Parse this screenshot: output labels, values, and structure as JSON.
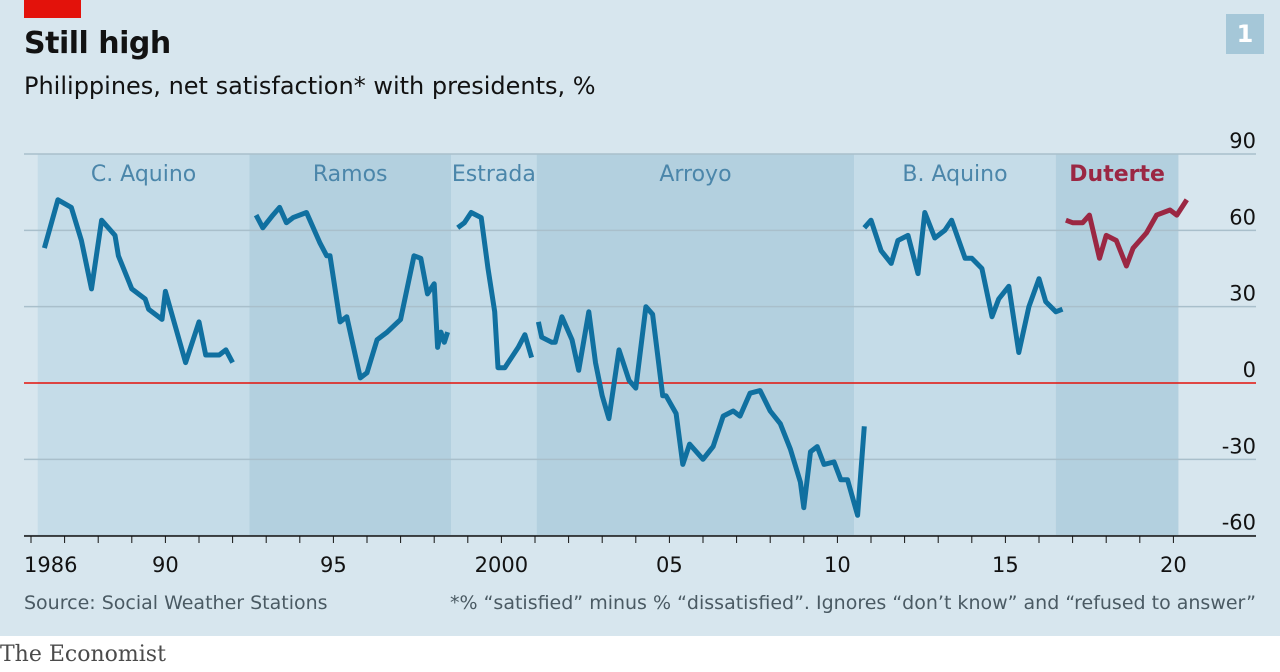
{
  "header": {
    "title": "Still high",
    "subtitle": "Philippines, net satisfaction* with presidents, %",
    "chart_number": "1"
  },
  "footer": {
    "source": "Source: Social Weather Stations",
    "footnote": "*% “satisfied” minus % “dissatisfied”. Ignores “don’t know” and “refused to answer”",
    "brand": "The Economist"
  },
  "colors": {
    "background": "#d7e6ee",
    "band": "#b3d0df",
    "line": "#1070a0",
    "highlight": "#9b2743",
    "zero_line": "#e3120b",
    "grid": "#a9bfcb",
    "band_label": "#4b86aa"
  },
  "chart_data": {
    "type": "line",
    "title": "Still high",
    "subtitle": "Philippines, net satisfaction* with presidents, %",
    "xlabel": "",
    "ylabel": "",
    "ylim": [
      -60,
      90
    ],
    "xlim": [
      1986,
      2021
    ],
    "y_ticks": [
      90,
      60,
      30,
      0,
      -30,
      -60
    ],
    "y_tick_labels": [
      "90",
      "60",
      "30",
      "0",
      "-30",
      "-60"
    ],
    "x_ticks": [
      1986,
      1990,
      1995,
      2000,
      2005,
      2010,
      2015,
      2020
    ],
    "x_tick_labels": [
      "1986",
      "90",
      "95",
      "2000",
      "05",
      "10",
      "15",
      "20"
    ],
    "grid": true,
    "zero_line": true,
    "presidencies": [
      {
        "name": "C. Aquino",
        "start": 1986.2,
        "end": 1992.5,
        "shaded": true,
        "highlight": false
      },
      {
        "name": "Ramos",
        "start": 1992.5,
        "end": 1998.5,
        "shaded": false,
        "highlight": false
      },
      {
        "name": "Estrada",
        "start": 1998.5,
        "end": 2001.05,
        "shaded": true,
        "highlight": false
      },
      {
        "name": "Arroyo",
        "start": 2001.05,
        "end": 2010.5,
        "shaded": false,
        "highlight": false
      },
      {
        "name": "B. Aquino",
        "start": 2010.5,
        "end": 2016.5,
        "shaded": true,
        "highlight": false
      },
      {
        "name": "Duterte",
        "start": 2016.5,
        "end": 2020.15,
        "shaded": false,
        "highlight": true
      }
    ],
    "series": [
      {
        "name": "C. Aquino",
        "highlight": false,
        "points": [
          [
            1986.4,
            53
          ],
          [
            1986.8,
            72
          ],
          [
            1987.2,
            69
          ],
          [
            1987.5,
            56
          ],
          [
            1987.8,
            37
          ],
          [
            1988.1,
            64
          ],
          [
            1988.5,
            58
          ],
          [
            1988.6,
            50
          ],
          [
            1989.0,
            37
          ],
          [
            1989.4,
            33
          ],
          [
            1989.5,
            29
          ],
          [
            1989.9,
            25
          ],
          [
            1990.0,
            36
          ],
          [
            1990.3,
            22
          ],
          [
            1990.6,
            8
          ],
          [
            1991.0,
            24
          ],
          [
            1991.2,
            11
          ],
          [
            1991.6,
            11
          ],
          [
            1991.8,
            13
          ],
          [
            1992.0,
            8
          ]
        ]
      },
      {
        "name": "Ramos",
        "highlight": false,
        "points": [
          [
            1992.7,
            66
          ],
          [
            1992.9,
            61
          ],
          [
            1993.2,
            66
          ],
          [
            1993.4,
            69
          ],
          [
            1993.6,
            63
          ],
          [
            1993.8,
            65
          ],
          [
            1994.2,
            67
          ],
          [
            1994.6,
            55
          ],
          [
            1994.8,
            50
          ],
          [
            1994.9,
            50
          ],
          [
            1995.2,
            24
          ],
          [
            1995.4,
            26
          ],
          [
            1995.8,
            2
          ],
          [
            1996.0,
            4
          ],
          [
            1996.3,
            17
          ],
          [
            1996.6,
            20
          ],
          [
            1997.0,
            25
          ],
          [
            1997.4,
            50
          ],
          [
            1997.6,
            49
          ],
          [
            1997.8,
            35
          ],
          [
            1998.0,
            39
          ],
          [
            1998.1,
            14
          ],
          [
            1998.2,
            20
          ],
          [
            1998.3,
            16
          ],
          [
            1998.4,
            20
          ]
        ]
      },
      {
        "name": "Estrada",
        "highlight": false,
        "points": [
          [
            1998.7,
            61
          ],
          [
            1998.9,
            63
          ],
          [
            1999.1,
            67
          ],
          [
            1999.4,
            65
          ],
          [
            1999.6,
            45
          ],
          [
            1999.8,
            28
          ],
          [
            1999.9,
            6
          ],
          [
            2000.1,
            6
          ],
          [
            2000.5,
            14
          ],
          [
            2000.7,
            19
          ],
          [
            2000.9,
            10
          ]
        ]
      },
      {
        "name": "Arroyo",
        "highlight": false,
        "points": [
          [
            2001.1,
            24
          ],
          [
            2001.2,
            18
          ],
          [
            2001.5,
            16
          ],
          [
            2001.6,
            16
          ],
          [
            2001.8,
            26
          ],
          [
            2002.1,
            17
          ],
          [
            2002.3,
            5
          ],
          [
            2002.6,
            28
          ],
          [
            2002.8,
            8
          ],
          [
            2003.0,
            -5
          ],
          [
            2003.2,
            -14
          ],
          [
            2003.5,
            13
          ],
          [
            2003.8,
            1
          ],
          [
            2004.0,
            -2
          ],
          [
            2004.3,
            30
          ],
          [
            2004.5,
            27
          ],
          [
            2004.8,
            -5
          ],
          [
            2004.9,
            -5
          ],
          [
            2005.2,
            -12
          ],
          [
            2005.4,
            -32
          ],
          [
            2005.6,
            -24
          ],
          [
            2006.0,
            -30
          ],
          [
            2006.3,
            -25
          ],
          [
            2006.6,
            -13
          ],
          [
            2006.9,
            -11
          ],
          [
            2007.1,
            -13
          ],
          [
            2007.4,
            -4
          ],
          [
            2007.7,
            -3
          ],
          [
            2008.0,
            -11
          ],
          [
            2008.3,
            -16
          ],
          [
            2008.6,
            -26
          ],
          [
            2008.9,
            -39
          ],
          [
            2009.0,
            -49
          ],
          [
            2009.2,
            -27
          ],
          [
            2009.4,
            -25
          ],
          [
            2009.6,
            -32
          ],
          [
            2009.9,
            -31
          ],
          [
            2010.1,
            -38
          ],
          [
            2010.3,
            -38
          ],
          [
            2010.6,
            -52
          ],
          [
            2010.8,
            -17
          ]
        ]
      },
      {
        "name": "B. Aquino",
        "highlight": false,
        "points": [
          [
            2010.8,
            61
          ],
          [
            2011.0,
            64
          ],
          [
            2011.3,
            52
          ],
          [
            2011.6,
            47
          ],
          [
            2011.8,
            56
          ],
          [
            2012.1,
            58
          ],
          [
            2012.4,
            43
          ],
          [
            2012.6,
            67
          ],
          [
            2012.9,
            57
          ],
          [
            2013.2,
            60
          ],
          [
            2013.4,
            64
          ],
          [
            2013.8,
            49
          ],
          [
            2014.0,
            49
          ],
          [
            2014.3,
            45
          ],
          [
            2014.6,
            26
          ],
          [
            2014.8,
            33
          ],
          [
            2015.1,
            38
          ],
          [
            2015.4,
            12
          ],
          [
            2015.7,
            30
          ],
          [
            2016.0,
            41
          ],
          [
            2016.2,
            32
          ],
          [
            2016.5,
            28
          ],
          [
            2016.7,
            29
          ]
        ]
      },
      {
        "name": "Duterte",
        "highlight": true,
        "points": [
          [
            2016.8,
            64
          ],
          [
            2017.0,
            63
          ],
          [
            2017.3,
            63
          ],
          [
            2017.5,
            66
          ],
          [
            2017.8,
            49
          ],
          [
            2018.0,
            58
          ],
          [
            2018.3,
            56
          ],
          [
            2018.6,
            46
          ],
          [
            2018.8,
            53
          ],
          [
            2019.2,
            59
          ],
          [
            2019.5,
            66
          ],
          [
            2019.9,
            68
          ],
          [
            2020.1,
            66
          ],
          [
            2020.4,
            72
          ]
        ]
      }
    ]
  }
}
